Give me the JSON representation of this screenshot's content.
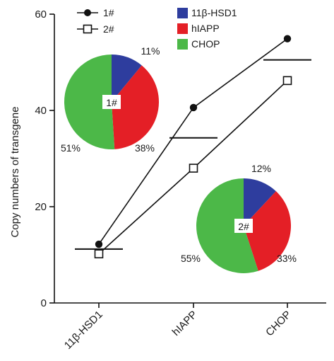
{
  "chart_data": {
    "type": "line",
    "title": "",
    "xlabel": "",
    "ylabel": "Copy numbers of transgene",
    "ylim": [
      0,
      60
    ],
    "yticks": [
      0,
      20,
      40,
      60
    ],
    "categories": [
      "11β-HSD1",
      "hIAPP",
      "CHOP"
    ],
    "series": [
      {
        "name": "1#",
        "marker": "filled-circle",
        "values": [
          12.2,
          40.6,
          54.9
        ]
      },
      {
        "name": "2#",
        "marker": "open-square",
        "values": [
          10.2,
          28.0,
          46.2
        ]
      }
    ],
    "means": [
      11.2,
      34.3,
      50.5
    ],
    "pies": [
      {
        "label": "1#",
        "slices": [
          {
            "name": "11β-HSD1",
            "value": 11,
            "label": "11%",
            "color": "#2e3d9e"
          },
          {
            "name": "hIAPP",
            "value": 38,
            "label": "38%",
            "color": "#e41f26"
          },
          {
            "name": "CHOP",
            "value": 51,
            "label": "51%",
            "color": "#4cb848"
          }
        ]
      },
      {
        "label": "2#",
        "slices": [
          {
            "name": "11β-HSD1",
            "value": 12,
            "label": "12%",
            "color": "#2e3d9e"
          },
          {
            "name": "hIAPP",
            "value": 33,
            "label": "33%",
            "color": "#e41f26"
          },
          {
            "name": "CHOP",
            "value": 55,
            "label": "55%",
            "color": "#4cb848"
          }
        ]
      }
    ],
    "pie_legend": [
      {
        "name": "11β-HSD1",
        "color": "#2e3d9e"
      },
      {
        "name": "hIAPP",
        "color": "#e41f26"
      },
      {
        "name": "CHOP",
        "color": "#4cb848"
      }
    ],
    "line_legend_placement": "top-left",
    "pie_legend_placement": "top-center",
    "grid": false
  }
}
